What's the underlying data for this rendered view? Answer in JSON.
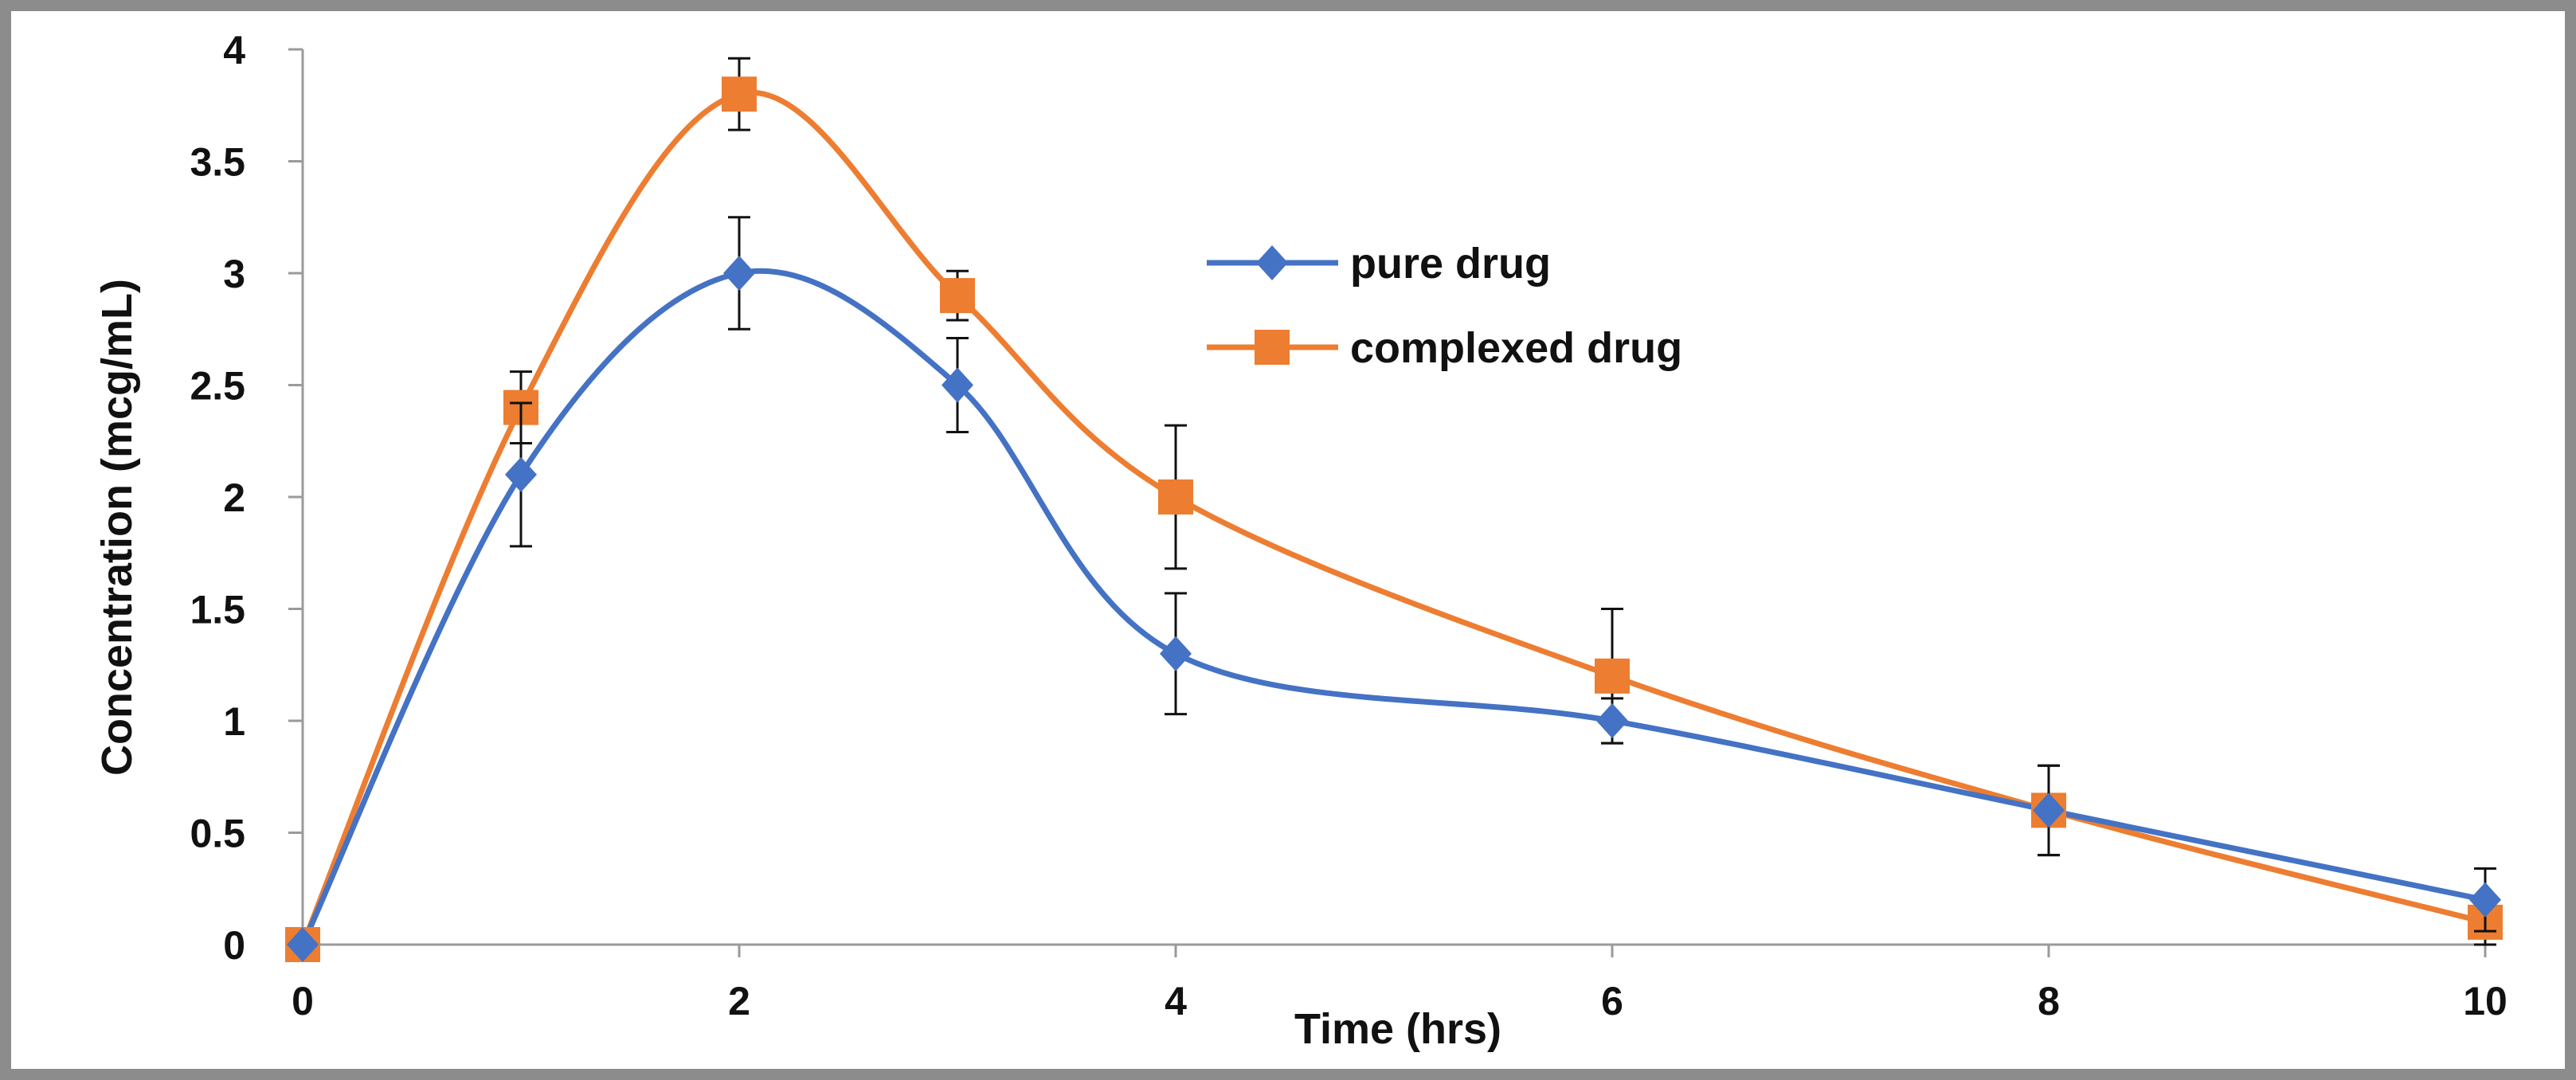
{
  "chart_data": {
    "type": "line",
    "title": "",
    "xlabel": "Time (hrs)",
    "ylabel": "Concentration (mcg/mL)",
    "xlim": [
      0,
      10
    ],
    "ylim": [
      0,
      4
    ],
    "x": [
      0,
      1,
      2,
      3,
      4,
      6,
      8,
      10
    ],
    "x_ticks": [
      "0",
      "2",
      "4",
      "6",
      "8",
      "10"
    ],
    "x_tick_values": [
      0,
      2,
      4,
      6,
      8,
      10
    ],
    "y_ticks": [
      "0",
      "0.5",
      "1",
      "1.5",
      "2",
      "2.5",
      "3",
      "3.5",
      "4"
    ],
    "y_tick_values": [
      0,
      0.5,
      1,
      1.5,
      2,
      2.5,
      3,
      3.5,
      4
    ],
    "grid": false,
    "legend_position": "right-center",
    "series": [
      {
        "name": "pure drug",
        "color": "#4472C4",
        "marker": "diamond",
        "values": [
          0,
          2.1,
          3.0,
          2.5,
          1.3,
          1.0,
          0.6,
          0.2
        ],
        "errors": [
          0,
          0.32,
          0.25,
          0.21,
          0.27,
          0.1,
          0.2,
          0.14
        ]
      },
      {
        "name": "complexed drug",
        "color": "#ED7D31",
        "marker": "square",
        "values": [
          0,
          2.4,
          3.8,
          2.9,
          2.0,
          1.2,
          0.6,
          0.1
        ],
        "errors": [
          0,
          0.16,
          0.16,
          0.11,
          0.32,
          0.3,
          0.2,
          0.1
        ]
      }
    ]
  }
}
